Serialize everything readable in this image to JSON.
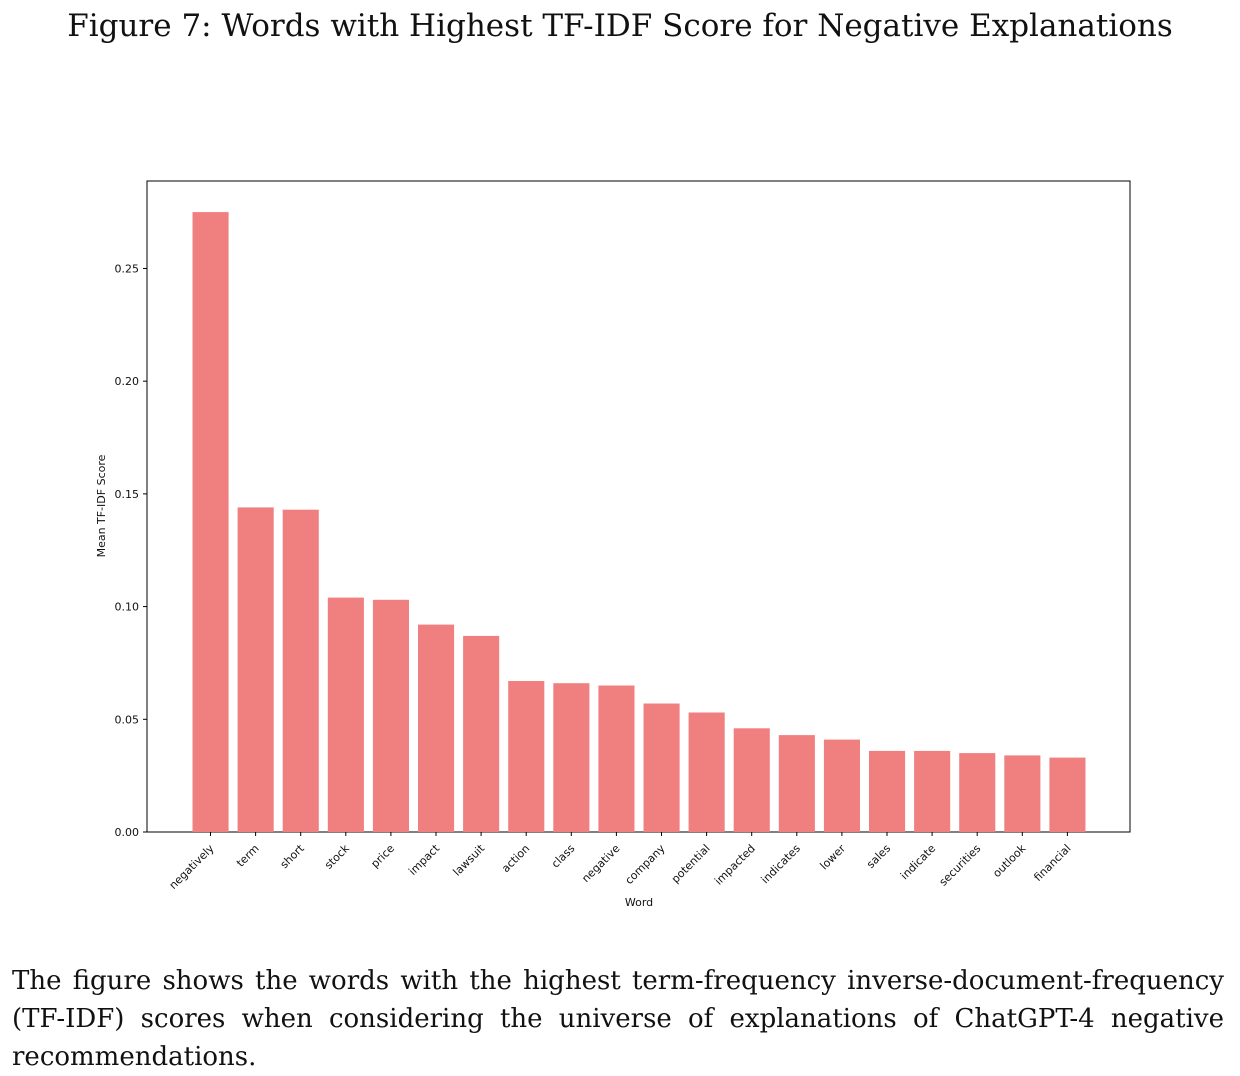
{
  "figure": {
    "title": "Figure 7: Words with Highest TF-IDF Score for Negative Explanations",
    "caption": "The figure shows the words with the highest term-frequency inverse-document-frequency (TF-IDF) scores when considering the universe of explanations of ChatGPT-4 negative recommendations."
  },
  "chart_data": {
    "type": "bar",
    "title": "",
    "xlabel": "Word",
    "ylabel": "Mean TF-IDF Score",
    "categories": [
      "negatively",
      "term",
      "short",
      "stock",
      "price",
      "impact",
      "lawsuit",
      "action",
      "class",
      "negative",
      "company",
      "potential",
      "impacted",
      "indicates",
      "lower",
      "sales",
      "indicate",
      "securities",
      "outlook",
      "financial"
    ],
    "values": [
      0.275,
      0.144,
      0.143,
      0.104,
      0.103,
      0.092,
      0.087,
      0.067,
      0.066,
      0.065,
      0.057,
      0.053,
      0.046,
      0.043,
      0.041,
      0.036,
      0.036,
      0.035,
      0.034,
      0.033
    ],
    "yticks": [
      0.0,
      0.05,
      0.1,
      0.15,
      0.2,
      0.25
    ],
    "ytick_labels": [
      "0.00",
      "0.05",
      "0.10",
      "0.15",
      "0.20",
      "0.25"
    ],
    "ylim": [
      0,
      0.2888
    ],
    "bar_color": "#f08080",
    "grid": false,
    "legend": "none"
  }
}
